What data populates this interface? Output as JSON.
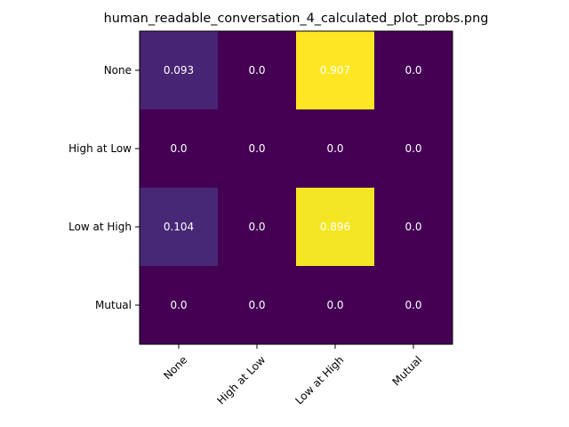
{
  "chart_data": {
    "type": "heatmap",
    "title": "human_readable_conversation_4_calculated_plot_probs.png",
    "xlabel": "",
    "ylabel": "",
    "x_categories": [
      "None",
      "High at Low",
      "Low at High",
      "Mutual"
    ],
    "y_categories": [
      "None",
      "High at Low",
      "Low at High",
      "Mutual"
    ],
    "values": [
      [
        0.093,
        0.0,
        0.907,
        0.0
      ],
      [
        0.0,
        0.0,
        0.0,
        0.0
      ],
      [
        0.104,
        0.0,
        0.896,
        0.0
      ],
      [
        0.0,
        0.0,
        0.0,
        0.0
      ]
    ],
    "value_labels": [
      [
        "0.093",
        "0.0",
        "0.907",
        "0.0"
      ],
      [
        "0.0",
        "0.0",
        "0.0",
        "0.0"
      ],
      [
        "0.104",
        "0.0",
        "0.896",
        "0.0"
      ],
      [
        "0.0",
        "0.0",
        "0.0",
        "0.0"
      ]
    ],
    "colormap": "viridis",
    "grid": false,
    "legend": "none"
  }
}
